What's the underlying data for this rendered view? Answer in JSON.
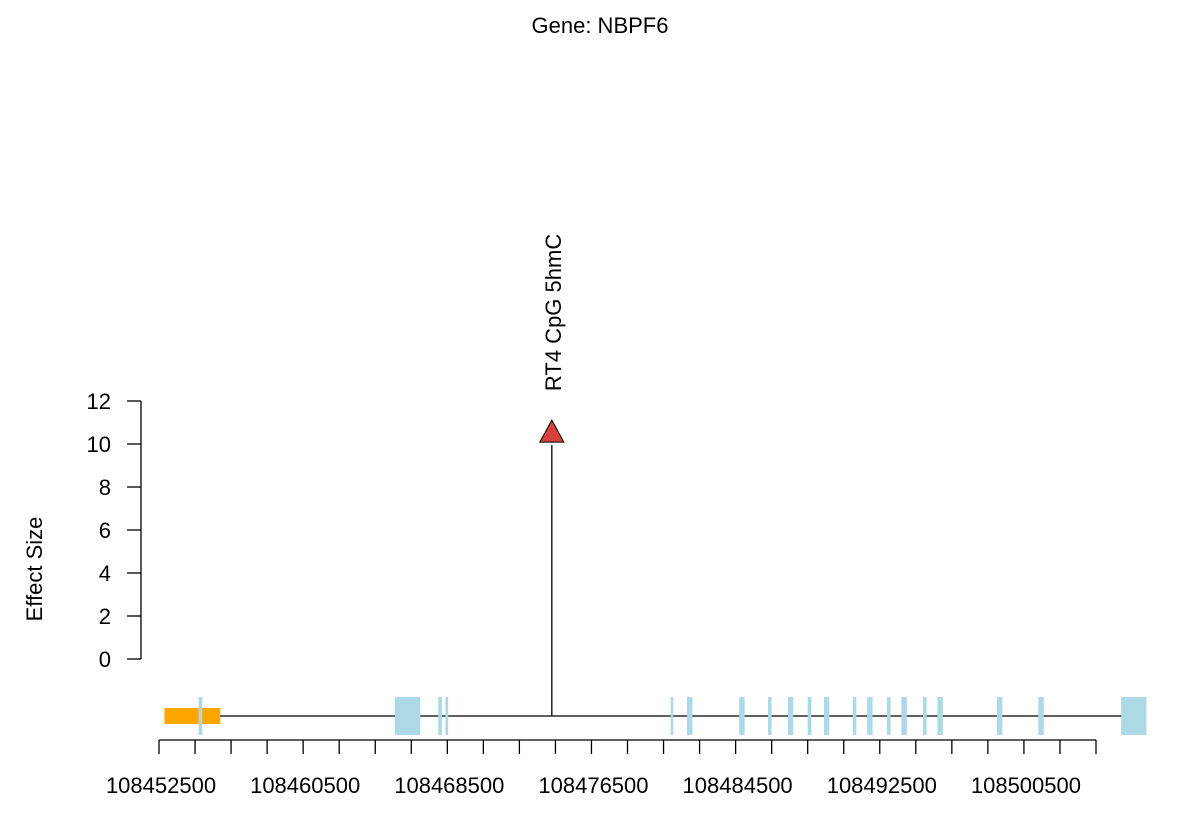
{
  "chart_data": {
    "type": "scatter",
    "title": "Gene: NBPF6",
    "xlabel": "",
    "ylabel": "Effect Size",
    "ylim": [
      0,
      12
    ],
    "y_ticks": [
      0,
      2,
      4,
      6,
      8,
      10,
      12
    ],
    "xlim": [
      108452500,
      108504500
    ],
    "x_tick_labels": [
      108452500,
      108460500,
      108468500,
      108476500,
      108484500,
      108492500,
      108500500
    ],
    "x_minor_ticks": [
      108452500,
      108454500,
      108456500,
      108458500,
      108460500,
      108462500,
      108464500,
      108466500,
      108468500,
      108470500,
      108472500,
      108474500,
      108476500,
      108478500,
      108480500,
      108482500,
      108484500,
      108486500,
      108488500,
      108490500,
      108492500,
      108494500,
      108496500,
      108498500,
      108500500,
      108502500,
      108504500
    ],
    "grid": false,
    "legend": "none",
    "points": [
      {
        "label": "RT4 CpG 5hmC",
        "x": 108474300,
        "y": 10.6,
        "marker": "triangle",
        "color": "#d7403c"
      }
    ],
    "gene_model": {
      "line_start": 108452800,
      "line_end": 108507300,
      "utr_color": "#ffa500",
      "exon_color": "#add8e6",
      "utr_regions": [
        [
          108452800,
          108455900
        ]
      ],
      "exons": [
        [
          108454700,
          108454900
        ],
        [
          108465600,
          108467000
        ],
        [
          108468000,
          108468200
        ],
        [
          108468400,
          108468550
        ],
        [
          108480900,
          108481000
        ],
        [
          108481800,
          108482100
        ],
        [
          108484700,
          108485000
        ],
        [
          108486300,
          108486500
        ],
        [
          108487400,
          108487700
        ],
        [
          108488500,
          108488700
        ],
        [
          108489400,
          108489700
        ],
        [
          108491000,
          108491200
        ],
        [
          108491800,
          108492100
        ],
        [
          108492900,
          108493100
        ],
        [
          108493700,
          108494000
        ],
        [
          108494900,
          108495100
        ],
        [
          108495700,
          108496000
        ],
        [
          108499000,
          108499300
        ],
        [
          108501300,
          108501600
        ],
        [
          108505900,
          108507300
        ]
      ]
    }
  }
}
